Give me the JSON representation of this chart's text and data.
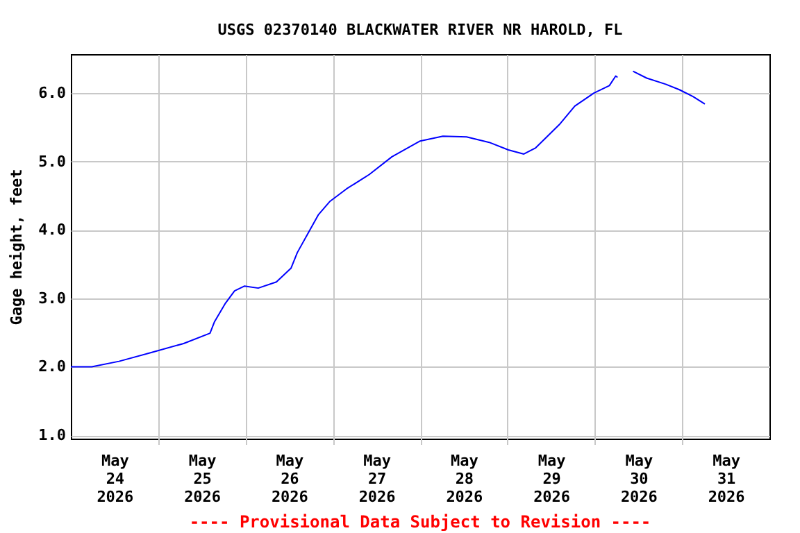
{
  "chart_data": {
    "type": "line",
    "title": "USGS 02370140 BLACKWATER RIVER NR HAROLD, FL",
    "ylabel": "Gage height, feet",
    "annotations": [
      "---- Provisional Data Subject to Revision ----"
    ],
    "xlim": [
      "2026-05-24T00:00",
      "2026-06-01T00:00"
    ],
    "xticks": [
      {
        "value": "2026-05-24T12:00",
        "label": "May\n24\n2026"
      },
      {
        "value": "2026-05-25T12:00",
        "label": "May\n25\n2026"
      },
      {
        "value": "2026-05-26T12:00",
        "label": "May\n26\n2026"
      },
      {
        "value": "2026-05-27T12:00",
        "label": "May\n27\n2026"
      },
      {
        "value": "2026-05-28T12:00",
        "label": "May\n28\n2026"
      },
      {
        "value": "2026-05-29T12:00",
        "label": "May\n29\n2026"
      },
      {
        "value": "2026-05-30T12:00",
        "label": "May\n30\n2026"
      },
      {
        "value": "2026-05-31T12:00",
        "label": "May\n31\n2026"
      },
      {
        "value": "2026-05-25T00:00",
        "label": null
      },
      {
        "value": "2026-05-26T00:00",
        "label": null
      },
      {
        "value": "2026-05-27T00:00",
        "label": null
      },
      {
        "value": "2026-05-28T00:00",
        "label": null
      },
      {
        "value": "2026-05-29T00:00",
        "label": null
      },
      {
        "value": "2026-05-30T00:00",
        "label": null
      },
      {
        "value": "2026-05-31T00:00",
        "label": null
      }
    ],
    "ylim": [
      0.95,
      6.57
    ],
    "yticks": [
      {
        "value": 1,
        "label": "1.0"
      },
      {
        "value": 2,
        "label": "2.0"
      },
      {
        "value": 3,
        "label": "3.0"
      },
      {
        "value": 4,
        "label": "4.0"
      },
      {
        "value": 5,
        "label": "5.0"
      },
      {
        "value": 6,
        "label": "6.0"
      }
    ],
    "grid": true,
    "legend": false,
    "x": [
      "2026-05-24T00:00",
      "2026-05-24T05:45",
      "2026-05-24T13:15",
      "2026-05-24T22:15",
      "2026-05-25T07:00",
      "2026-05-25T14:15",
      "2026-05-25T15:30",
      "2026-05-25T18:30",
      "2026-05-25T21:00",
      "2026-05-25T23:45",
      "2026-05-26T03:30",
      "2026-05-26T08:30",
      "2026-05-26T12:30",
      "2026-05-26T14:15",
      "2026-05-26T17:30",
      "2026-05-26T20:00",
      "2026-05-26T23:15",
      "2026-05-27T03:45",
      "2026-05-27T10:00",
      "2026-05-27T16:15",
      "2026-05-28T00:00",
      "2026-05-28T06:15",
      "2026-05-28T12:45",
      "2026-05-28T19:00",
      "2026-05-29T00:15",
      "2026-05-29T04:30",
      "2026-05-29T07:45",
      "2026-05-29T11:00",
      "2026-05-29T14:15",
      "2026-05-29T18:30",
      "2026-05-29T23:45",
      "2026-05-30T04:00",
      "2026-05-30T05:45",
      "2026-05-30T06:15",
      "2026-05-30T08:00",
      "2026-05-30T10:30",
      "2026-05-30T14:15",
      "2026-05-30T19:30",
      "2026-05-30T23:15",
      "2026-05-31T03:00",
      "2026-05-31T06:15"
    ],
    "series": [
      {
        "color": "#0000ff",
        "values": [
          2.0,
          2.0,
          2.08,
          2.21,
          2.34,
          2.49,
          2.66,
          2.93,
          3.11,
          3.18,
          3.15,
          3.24,
          3.44,
          3.67,
          3.98,
          4.22,
          4.42,
          4.6,
          4.81,
          5.07,
          5.3,
          5.37,
          5.36,
          5.28,
          5.17,
          5.11,
          5.2,
          5.37,
          5.54,
          5.81,
          6.0,
          6.11,
          6.25,
          6.23,
          null,
          6.32,
          6.22,
          6.13,
          6.05,
          5.95,
          5.84
        ]
      }
    ]
  }
}
